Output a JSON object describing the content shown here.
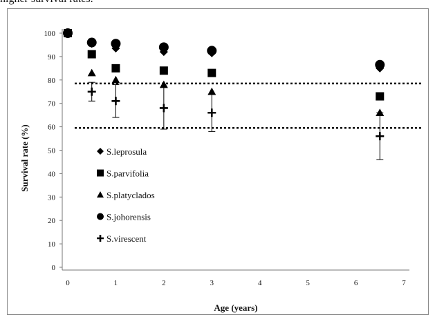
{
  "top_text": "higher survival rates.",
  "chart_data": {
    "type": "scatter",
    "title": "",
    "xlabel": "Age (years)",
    "ylabel": "Survival rate (%)",
    "xlim": [
      0,
      7
    ],
    "ylim": [
      0,
      100
    ],
    "xticks": [
      0,
      1,
      2,
      3,
      4,
      5,
      6,
      7
    ],
    "yticks": [
      0,
      10,
      20,
      30,
      40,
      50,
      60,
      70,
      80,
      90,
      100
    ],
    "grid": false,
    "legend_placement": "inside-left",
    "reference_lines": [
      {
        "y": 78.5,
        "style": "dotted"
      },
      {
        "y": 59.5,
        "style": "dotted"
      }
    ],
    "series": [
      {
        "name": "S.leprosula",
        "marker": "diamond",
        "points": [
          {
            "x": 0,
            "y": 100
          },
          {
            "x": 0.5,
            "y": 95.5
          },
          {
            "x": 1,
            "y": 93.5
          },
          {
            "x": 2,
            "y": 92
          },
          {
            "x": 3,
            "y": 91.5
          },
          {
            "x": 6.5,
            "y": 85
          }
        ],
        "err": [
          0,
          0,
          0,
          0,
          0,
          0
        ]
      },
      {
        "name": "S.parvifolia",
        "marker": "square",
        "points": [
          {
            "x": 0,
            "y": 100
          },
          {
            "x": 0.5,
            "y": 91
          },
          {
            "x": 1,
            "y": 85
          },
          {
            "x": 2,
            "y": 84
          },
          {
            "x": 3,
            "y": 83
          },
          {
            "x": 6.5,
            "y": 73
          }
        ],
        "err": [
          0,
          0,
          0,
          0,
          0,
          0
        ]
      },
      {
        "name": "S.platyclados",
        "marker": "triangle",
        "points": [
          {
            "x": 0,
            "y": 100
          },
          {
            "x": 0.5,
            "y": 83
          },
          {
            "x": 1,
            "y": 80
          },
          {
            "x": 2,
            "y": 78
          },
          {
            "x": 3,
            "y": 75
          },
          {
            "x": 6.5,
            "y": 66
          }
        ],
        "err": [
          0,
          0,
          0,
          0,
          0,
          0
        ]
      },
      {
        "name": "S.johorensis",
        "marker": "circle",
        "points": [
          {
            "x": 0,
            "y": 100
          },
          {
            "x": 0.5,
            "y": 96
          },
          {
            "x": 1,
            "y": 95.5
          },
          {
            "x": 2,
            "y": 94
          },
          {
            "x": 3,
            "y": 92.5
          },
          {
            "x": 6.5,
            "y": 86.5
          }
        ],
        "err": [
          0,
          0,
          0,
          0,
          0,
          0
        ]
      },
      {
        "name": "S.virescent",
        "marker": "plus",
        "points": [
          {
            "x": 0,
            "y": 100
          },
          {
            "x": 0.5,
            "y": 75
          },
          {
            "x": 1,
            "y": 71
          },
          {
            "x": 2,
            "y": 68
          },
          {
            "x": 3,
            "y": 66
          },
          {
            "x": 6.5,
            "y": 56
          }
        ],
        "err": [
          0,
          4,
          7,
          9,
          8,
          10
        ]
      }
    ]
  }
}
